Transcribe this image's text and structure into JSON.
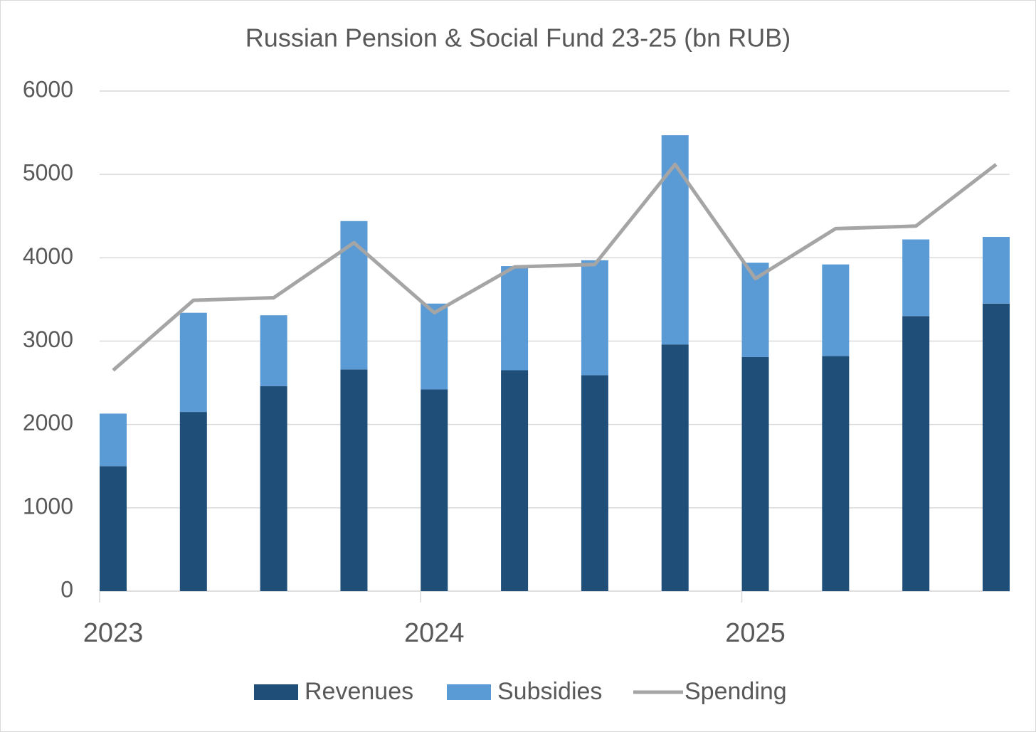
{
  "chart_data": {
    "type": "bar",
    "title": "Russian Pension & Social Fund 23-25 (bn RUB)",
    "categories": [
      "2023",
      null,
      null,
      null,
      "2024",
      null,
      null,
      null,
      "2025",
      null,
      null,
      null
    ],
    "series": [
      {
        "name": "Revenues",
        "color": "#1f4e79",
        "type": "bar",
        "values": [
          1500,
          2150,
          2460,
          2660,
          2420,
          2650,
          2590,
          2960,
          2810,
          2820,
          3300,
          3450
        ]
      },
      {
        "name": "Subsidies",
        "color": "#5b9bd5",
        "type": "bar",
        "values": [
          630,
          1190,
          850,
          1780,
          1030,
          1250,
          1380,
          2510,
          1130,
          1100,
          920,
          800
        ]
      },
      {
        "name": "Spending",
        "color": "#a5a5a5",
        "type": "line",
        "values": [
          2650,
          3490,
          3520,
          4180,
          3340,
          3890,
          3920,
          5120,
          3750,
          4350,
          4380,
          5120
        ]
      }
    ],
    "ylim": [
      0,
      6000
    ],
    "yticks": [
      0,
      1000,
      2000,
      3000,
      4000,
      5000,
      6000
    ],
    "grid": true,
    "legend": "bottom"
  }
}
